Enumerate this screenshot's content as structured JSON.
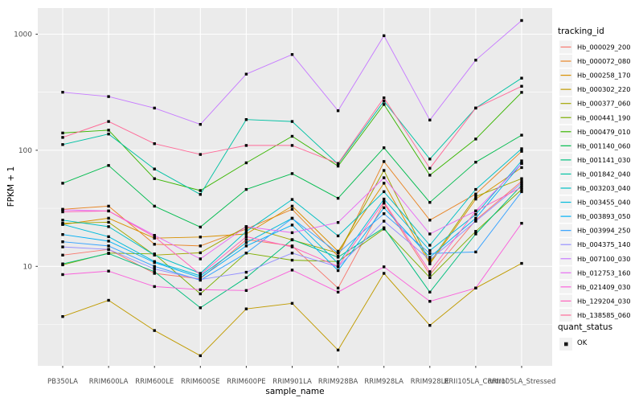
{
  "chart_data": {
    "type": "line",
    "title": "",
    "xlabel": "sample_name",
    "ylabel": "FPKM + 1",
    "y_scale": "log10",
    "ylim": [
      1.4,
      1700
    ],
    "grid": true,
    "panel_bg": "#EBEBEB",
    "grid_color": "#FFFFFF",
    "tick_label_color": "#4D4D4D",
    "tick_mark_color": "#333333",
    "point_color": "#000000",
    "y_major_ticks": [
      {
        "value": 1000,
        "label": "1000"
      },
      {
        "value": 100,
        "label": "100"
      },
      {
        "value": 10,
        "label": "10"
      }
    ],
    "y_minor_gridlines": [
      3.162,
      31.62,
      316.2
    ],
    "categories": [
      "PB350LA",
      "RRIM600LA",
      "RRIM600LE",
      "RRIM600SE",
      "RRIM600PE",
      "RRIM901LA",
      "RRIM928BA",
      "RRIM928LA",
      "RRIM928LE",
      "RRII105LA_Control",
      "RRII105LA_Stressed"
    ],
    "legend": {
      "title": "tracking_id",
      "position": "right"
    },
    "quant_legend": {
      "title": "quant_status",
      "items": [
        {
          "label": "OK",
          "marker": "black-square"
        }
      ]
    },
    "series": [
      {
        "name": "Hb_000029_200",
        "color": "#F8766D",
        "values": [
          12.5,
          14,
          8.7,
          7.8,
          17,
          15,
          6.5,
          35,
          8.5,
          25,
          54
        ]
      },
      {
        "name": "Hb_000072_080",
        "color": "#E88526",
        "values": [
          31,
          33,
          15.5,
          15,
          21,
          31,
          12.2,
          80,
          25,
          42,
          98
        ]
      },
      {
        "name": "Hb_000258_170",
        "color": "#D89000",
        "values": [
          23,
          26,
          17.5,
          17.9,
          19,
          33,
          13.5,
          52,
          10.5,
          38,
          71
        ]
      },
      {
        "name": "Hb_000302_220",
        "color": "#C09B00",
        "values": [
          3.7,
          5.1,
          2.8,
          1.7,
          4.3,
          4.8,
          1.9,
          8.7,
          3.1,
          6.5,
          10.6
        ]
      },
      {
        "name": "Hb_000377_060",
        "color": "#A3A500",
        "values": [
          23.5,
          24,
          12.5,
          13.1,
          22,
          16.9,
          13,
          67,
          10.8,
          40,
          57
        ]
      },
      {
        "name": "Hb_000441_190",
        "color": "#7CAE00",
        "values": [
          10.3,
          13,
          12.8,
          5.8,
          13,
          11.3,
          11,
          21,
          8,
          20,
          46
        ]
      },
      {
        "name": "Hb_000479_010",
        "color": "#39B600",
        "values": [
          141,
          149,
          57,
          45,
          78,
          132,
          73,
          248,
          61,
          125,
          315
        ]
      },
      {
        "name": "Hb_001140_060",
        "color": "#00BB4E",
        "values": [
          52,
          74,
          33,
          21.8,
          46,
          63,
          38.6,
          105,
          35.6,
          79,
          135
        ]
      },
      {
        "name": "Hb_001141_030",
        "color": "#00BF7D",
        "values": [
          10.5,
          12.9,
          9,
          4.4,
          8,
          17,
          12,
          21.5,
          6,
          19,
          50
        ]
      },
      {
        "name": "Hb_001842_040",
        "color": "#00C1A3",
        "values": [
          112,
          138,
          69,
          41.7,
          184,
          177,
          76,
          265,
          84,
          231,
          418
        ]
      },
      {
        "name": "Hb_003203_040",
        "color": "#00BFC4",
        "values": [
          25,
          22,
          12.5,
          8.7,
          20,
          37.7,
          18.3,
          44,
          15.2,
          46,
          103
        ]
      },
      {
        "name": "Hb_003455_040",
        "color": "#00BBDB",
        "values": [
          23,
          18,
          11,
          8.3,
          16,
          26,
          10.6,
          38,
          13.7,
          28,
          81
        ]
      },
      {
        "name": "Hb_003893_050",
        "color": "#00B0F6",
        "values": [
          18.8,
          16.5,
          10.8,
          8,
          15,
          22.7,
          9.2,
          32,
          12,
          26,
          77
        ]
      },
      {
        "name": "Hb_003994_250",
        "color": "#35A2FF",
        "values": [
          16.3,
          15,
          10,
          7.6,
          13,
          25.9,
          13,
          28.4,
          12.9,
          13.3,
          44
        ]
      },
      {
        "name": "Hb_004375_140",
        "color": "#9590FF",
        "values": [
          14.7,
          14,
          9.5,
          7.7,
          8.9,
          13,
          9.9,
          24.5,
          11.4,
          24.5,
          52
        ]
      },
      {
        "name": "Hb_007100_030",
        "color": "#C77CFF",
        "values": [
          316,
          290,
          231,
          167,
          453,
          668,
          219,
          970,
          182,
          597,
          1312
        ]
      },
      {
        "name": "Hb_012753_160",
        "color": "#E76BF3",
        "values": [
          30.7,
          30,
          18.5,
          11.6,
          22,
          19.5,
          23.9,
          58,
          19,
          30,
          77
        ]
      },
      {
        "name": "Hb_021409_030",
        "color": "#FA62DB",
        "values": [
          8.5,
          9.1,
          6.7,
          6.3,
          6.2,
          9.3,
          6,
          9.9,
          5,
          6.5,
          23.5
        ]
      },
      {
        "name": "Hb_129204_030",
        "color": "#FF62BC",
        "values": [
          29.5,
          30,
          18,
          8.5,
          18,
          14.7,
          10,
          36,
          9,
          30,
          48
        ]
      },
      {
        "name": "Hb_138585_060",
        "color": "#FF6A98",
        "values": [
          129,
          177,
          114,
          92,
          110,
          110,
          77,
          283,
          70,
          231,
          356
        ]
      }
    ]
  }
}
